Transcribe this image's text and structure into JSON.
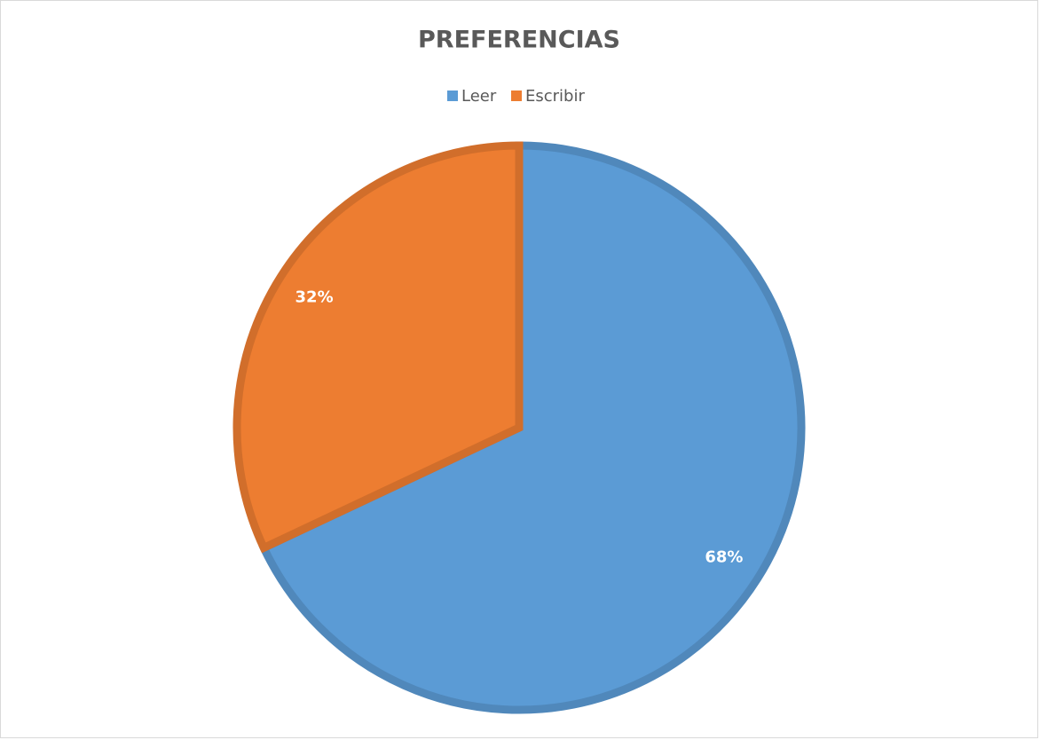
{
  "chart_data": {
    "type": "pie",
    "title": "PREFERENCIAS",
    "categories": [
      "Leer",
      "Escribir"
    ],
    "values": [
      68,
      32
    ],
    "value_labels": [
      "68%",
      "32%"
    ],
    "colors": [
      "#5b9bd5",
      "#ed7d31"
    ],
    "legend": "top"
  }
}
